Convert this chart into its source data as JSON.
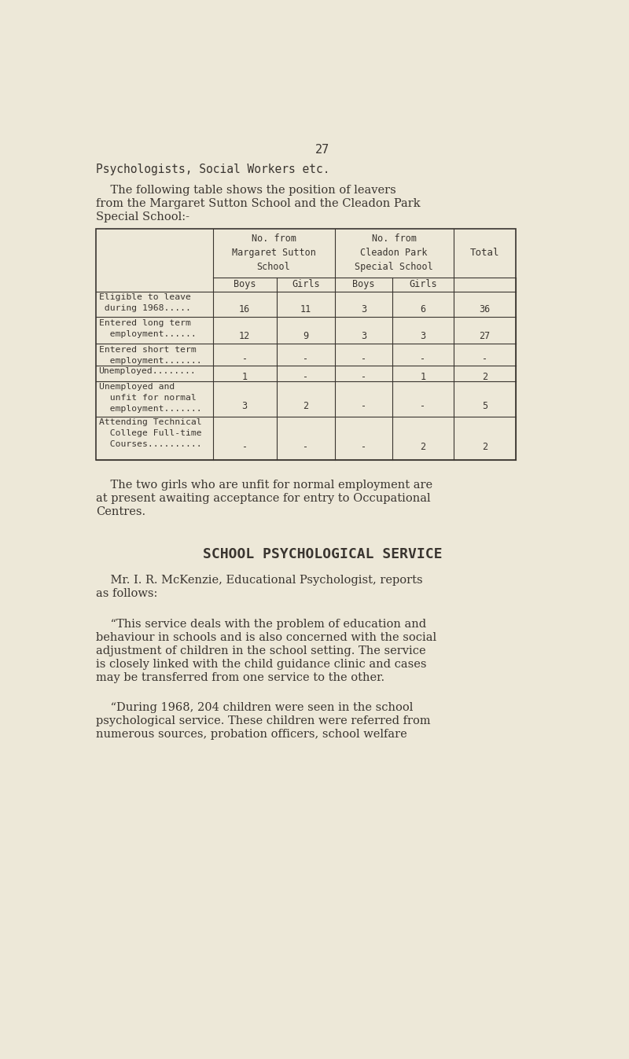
{
  "bg_color": "#ede8d8",
  "text_color": "#3a3530",
  "page_number": "27",
  "line1": "Psychologists, Social Workers etc.",
  "intro_line1": "    The following table shows the position of leavers",
  "intro_line2": "from the Margaret Sutton School and the Cleadon Park",
  "intro_line3": "Special School:-",
  "table": {
    "rows": [
      {
        "label": "Eligible to leave\n during 1968.....",
        "vals": [
          "16",
          "11",
          "3",
          "6",
          "36"
        ]
      },
      {
        "label": "Entered long term\n  employment......",
        "vals": [
          "12",
          "9",
          "3",
          "3",
          "27"
        ]
      },
      {
        "label": "Entered short term\n  employment.......",
        "vals": [
          "-",
          "-",
          "-",
          "-",
          "-"
        ]
      },
      {
        "label": "Unemployed........",
        "vals": [
          "1",
          "-",
          "-",
          "1",
          "2"
        ]
      },
      {
        "label": "Unemployed and\n  unfit for normal\n  employment.......",
        "vals": [
          "3",
          "2",
          "-",
          "-",
          "5"
        ]
      },
      {
        "label": "Attending Technical\n  College Full-time\n  Courses..........",
        "vals": [
          "-",
          "-",
          "-",
          "2",
          "2"
        ]
      }
    ]
  },
  "note_line1": "    The two girls who are unfit for normal employment are",
  "note_line2": "at present awaiting acceptance for entry to Occupational",
  "note_line3": "Centres.",
  "section_title": "SCHOOL PSYCHOLOGICAL SERVICE",
  "para1_line1": "    Mr. I. R. McKenzie, Educational Psychologist, reports",
  "para1_line2": "as follows:",
  "para2_line1": "    “This service deals with the problem of education and",
  "para2_line2": "behaviour in schools and is also concerned with the social",
  "para2_line3": "adjustment of children in the school setting. The service",
  "para2_line4": "is closely linked with the child guidance clinic and cases",
  "para2_line5": "may be transferred from one service to the other.",
  "para3_line1": "    “During 1968, 204 children were seen in the school",
  "para3_line2": "psychological service. These children were referred from",
  "para3_line3": "numerous sources, probation officers, school welfare"
}
